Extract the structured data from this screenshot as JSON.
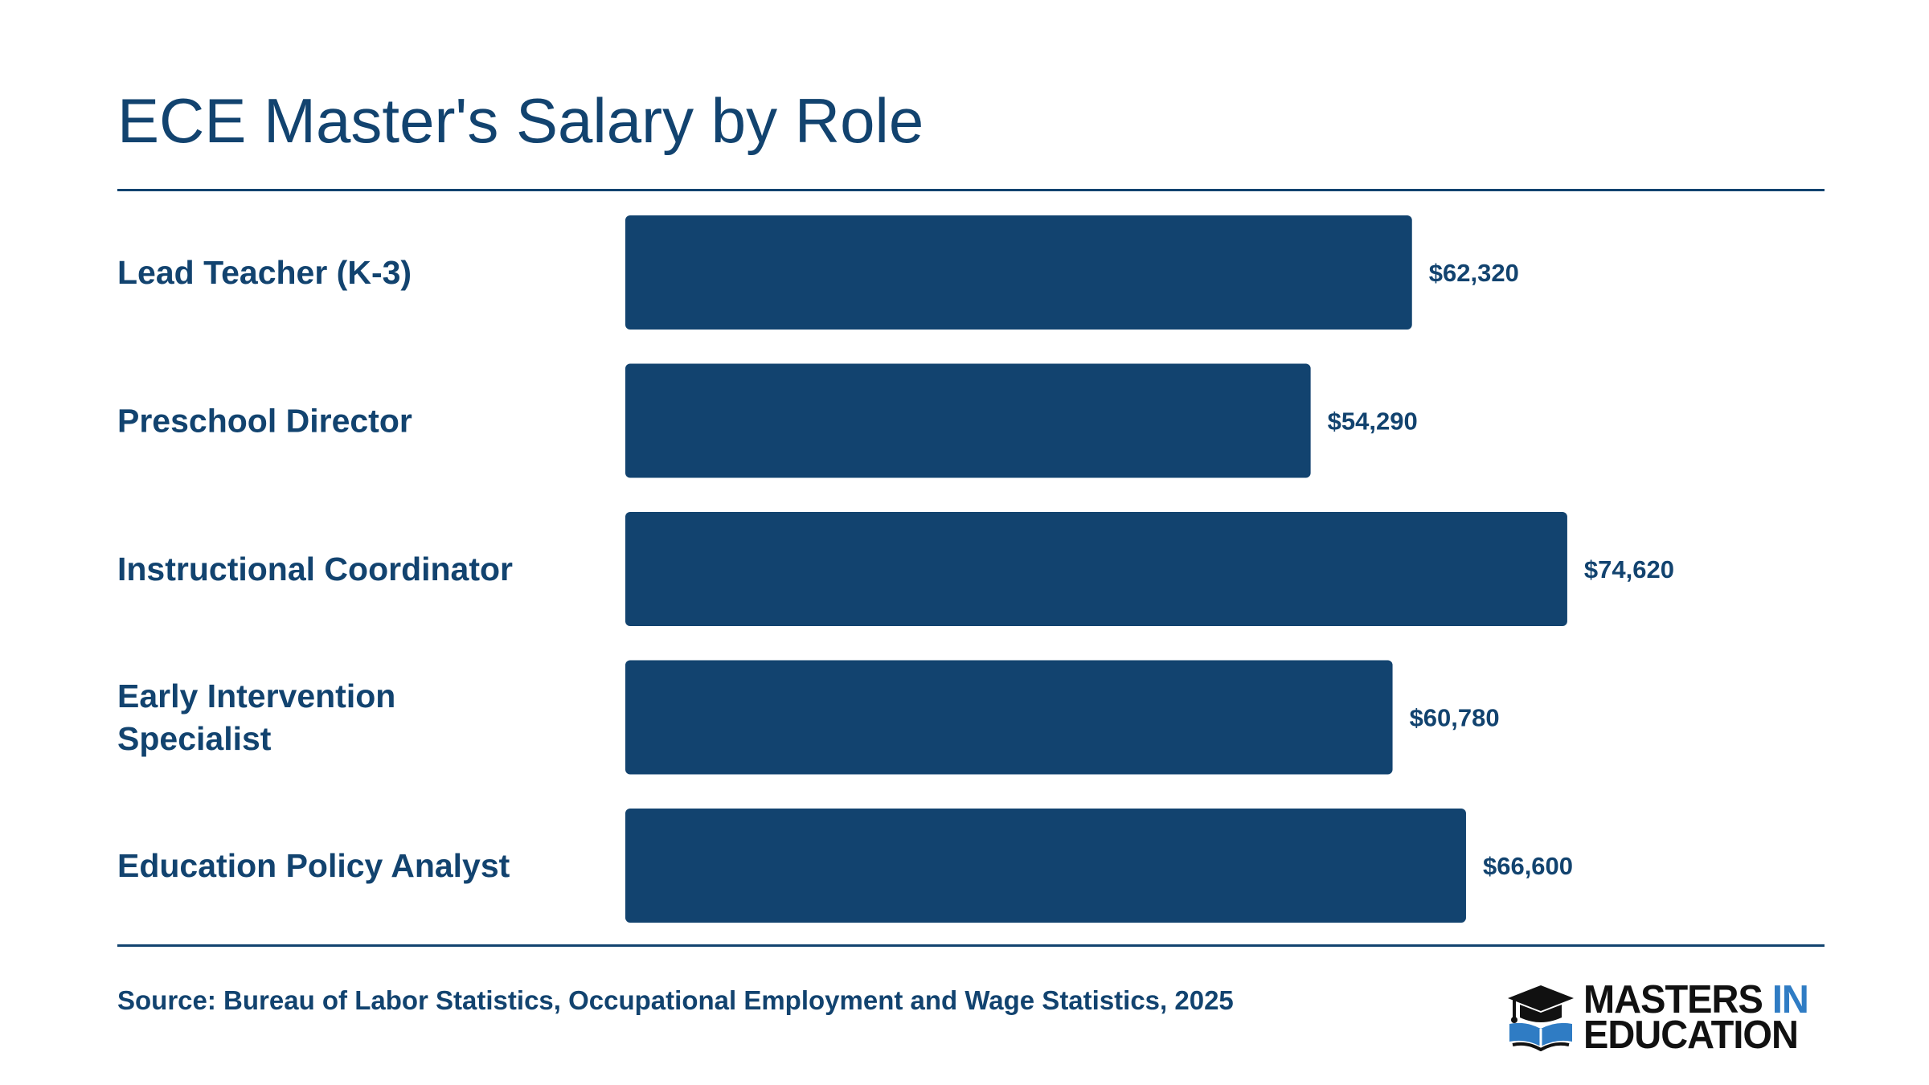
{
  "title": "ECE Master's Salary by Role",
  "colors": {
    "bar": "#12436f",
    "text": "#12436f",
    "logo_dark": "#111111",
    "logo_accent": "#2f7cc4"
  },
  "chart_data": {
    "type": "bar",
    "orientation": "horizontal",
    "title": "ECE Master's Salary by Role",
    "categories": [
      [
        "Lead Teacher (K-3)"
      ],
      [
        "Preschool Director"
      ],
      [
        "Instructional Coordinator"
      ],
      [
        "Early Intervention",
        "Specialist"
      ],
      [
        "Education Policy Analyst"
      ]
    ],
    "values": [
      62320,
      54290,
      74620,
      60780,
      66600
    ],
    "value_labels": [
      "$62,320",
      "$54,290",
      "$74,620",
      "$60,780",
      "$66,600"
    ],
    "xlim": [
      0,
      95000
    ],
    "grid": false,
    "legend": "none"
  },
  "footer": {
    "source": "Source: Bureau of Labor Statistics, Occupational Employment and Wage Statistics, 2025"
  },
  "logo": {
    "line1_part1": "MASTERS",
    "line1_part2": "IN",
    "line2": "EDUCATION",
    "icon": "graduation-cap-book-icon"
  }
}
